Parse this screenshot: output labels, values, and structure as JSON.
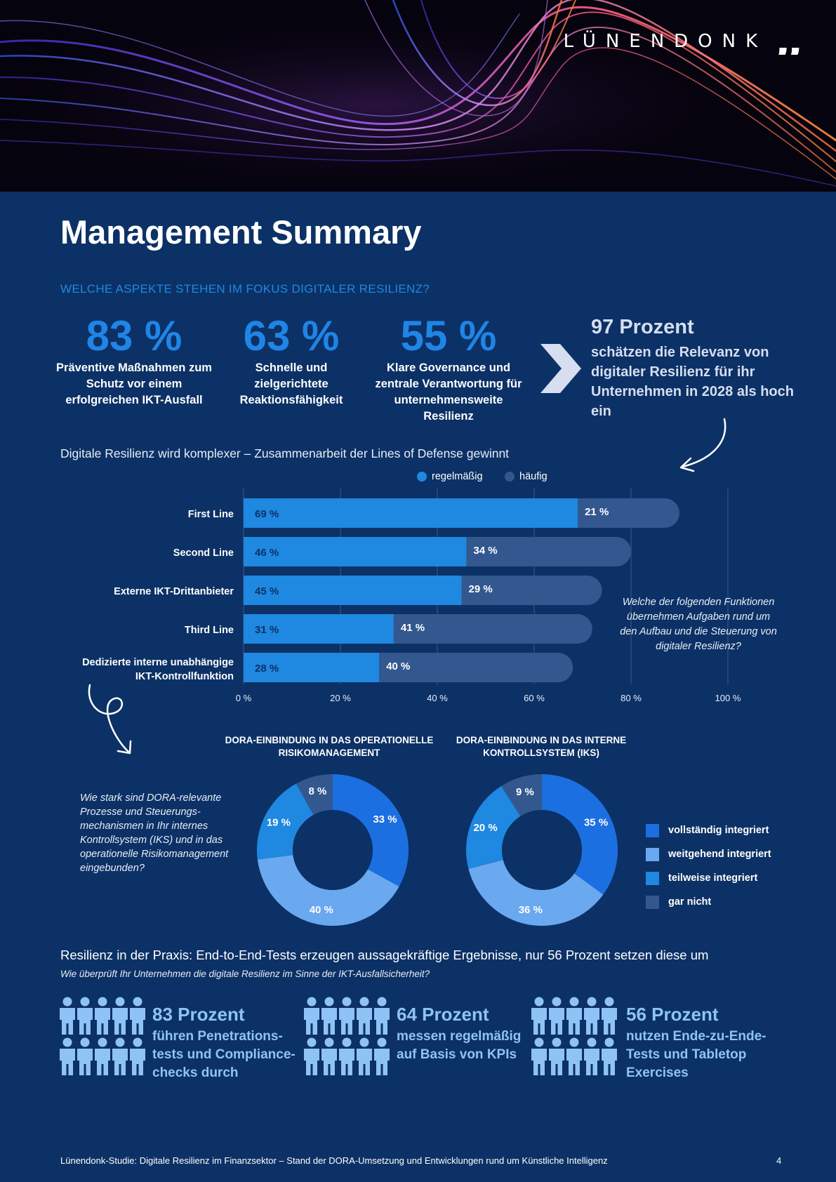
{
  "brand": {
    "name": "LÜNENDONK",
    "mark": "„"
  },
  "page": {
    "title": "Management Summary",
    "number": "4"
  },
  "focus": {
    "label": "WELCHE ASPEKTE STEHEN IM FOKUS DIGITALER RESILIENZ?",
    "stats": [
      {
        "value": "83 %",
        "desc": "Präventive Maßnahmen zum Schutz vor einem erfolgreichen IKT-Ausfall"
      },
      {
        "value": "63 %",
        "desc": "Schnelle und zielgerichtete Reaktionsfähigkeit"
      },
      {
        "value": "55 %",
        "desc": "Klare Governance und zentrale Verantwortung für unternehmensweite Resilienz"
      }
    ],
    "highlight": {
      "head": "97 Prozent",
      "body": "schätzen die Relevanz von digitaler Resilienz für ihr Unternehmen in 2028 als hoch ein"
    }
  },
  "lines_section": {
    "subtitle": "Digitale Resilienz wird komplexer – Zusammenarbeit der Lines of Defense gewinnt",
    "question": "Welche der folgenden Funktionen übernehmen Aufgaben rund um den Aufbau und die Steuerung von digitaler Resilienz?"
  },
  "donut_section": {
    "titles": [
      "DORA-EINBINDUNG IN DAS OPERATIONELLE RISIKOMANAGEMENT",
      "DORA-EINBINDUNG IN DAS INTERNE KONTROLLSYSTEM (IKS)"
    ],
    "question": "Wie stark sind DORA-relevante Prozesse und Steuerungs-mechanismen in Ihr internes Kontrollsystem (IKS) und in das operationelle Risikomanagement eingebunden?"
  },
  "practice": {
    "title": "Resilienz in der Praxis: End-to-End-Tests erzeugen aussagekräftige Ergebnisse, nur 56 Prozent setzen diese um",
    "question": "Wie überprüft Ihr Unternehmen die digitale Resilienz im Sinne der IKT-Ausfallsicherheit?",
    "stats": [
      {
        "head": "83 Prozent",
        "body": "führen Penetrations-tests und Compliance-checks durch"
      },
      {
        "head": "64 Prozent",
        "body": "messen regelmäßig auf Basis von KPIs"
      },
      {
        "head": "56 Prozent",
        "body": "nutzen Ende-zu-Ende-Tests und Tabletop Exercises"
      }
    ]
  },
  "footer": "Lünendonk-Studie: Digitale Resilienz im Finanzsektor – Stand der DORA-Umsetzung und Entwicklungen rund um Künstliche Intelligenz",
  "colors": {
    "background": "#0c3166",
    "accent": "#1f85e6",
    "regelmaessig": "#1f88e0",
    "haeufig": "#33588f",
    "vollstaendig": "#1c6fe0",
    "weitgehend": "#6aa8f0",
    "teilweise": "#1f88e0",
    "gar_nicht": "#33588f"
  },
  "chart_data": [
    {
      "type": "bar",
      "orientation": "horizontal",
      "stacked": true,
      "categories": [
        "First Line",
        "Second Line",
        "Externe IKT-Drittanbieter",
        "Third Line",
        "Dedizierte interne unabhängige IKT-Kontrollfunktion"
      ],
      "series": [
        {
          "name": "regelmäßig",
          "values": [
            69,
            46,
            45,
            31,
            28
          ],
          "labels": [
            "69 %",
            "46 %",
            "45 %",
            "31 %",
            "28 %"
          ]
        },
        {
          "name": "häufig",
          "values": [
            21,
            34,
            29,
            41,
            40
          ],
          "labels": [
            "21 %",
            "34 %",
            "29 %",
            "41 %",
            "40 %"
          ]
        }
      ],
      "xlim": [
        0,
        100
      ],
      "xticks": [
        "0 %",
        "20 %",
        "40 %",
        "60 %",
        "80 %",
        "100 %"
      ],
      "grid": true,
      "legend": "top"
    },
    {
      "type": "pie",
      "donut": true,
      "title": "DORA-EINBINDUNG IN DAS OPERATIONELLE RISIKOMANAGEMENT",
      "categories": [
        "vollständig integriert",
        "weitgehend integriert",
        "teilweise integriert",
        "gar nicht"
      ],
      "values": [
        33,
        40,
        19,
        8
      ],
      "labels": [
        "33 %",
        "40 %",
        "19 %",
        "8 %"
      ]
    },
    {
      "type": "pie",
      "donut": true,
      "title": "DORA-EINBINDUNG IN DAS INTERNE KONTROLLSYSTEM (IKS)",
      "categories": [
        "vollständig integriert",
        "weitgehend integriert",
        "teilweise integriert",
        "gar nicht"
      ],
      "values": [
        35,
        36,
        20,
        9
      ],
      "labels": [
        "35 %",
        "36 %",
        "20 %",
        "9 %"
      ]
    }
  ]
}
